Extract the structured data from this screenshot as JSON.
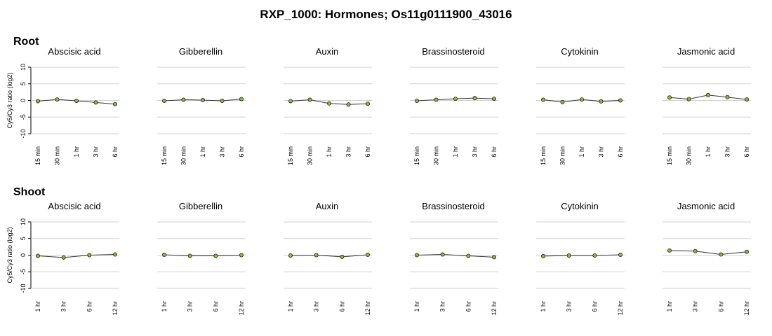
{
  "chart_data": {
    "title": "RXP_1000: Hormones; Os11g0111900_43016",
    "ylabel": "Cy5/Cy3 ratio (log2)",
    "ylim": [
      -10,
      10
    ],
    "yticks": [
      10,
      5,
      0,
      -5,
      -10
    ],
    "type": "line",
    "colors": {
      "line": "#333333",
      "point_fill": "#8ab83a",
      "point_edge": "#222222",
      "grid": "#d0d0d0"
    },
    "groups": [
      {
        "name": "Root",
        "x": [
          "15 min",
          "30 min",
          "1 hr",
          "3 hr",
          "6 hr"
        ],
        "panels": [
          {
            "title": "Abscisic acid",
            "values": [
              -0.2,
              0.3,
              -0.1,
              -0.6,
              -1.1
            ]
          },
          {
            "title": "Gibberellin",
            "values": [
              -0.1,
              0.2,
              0.1,
              -0.1,
              0.4
            ]
          },
          {
            "title": "Auxin",
            "values": [
              -0.2,
              0.2,
              -0.9,
              -1.2,
              -1.0
            ]
          },
          {
            "title": "Brassinosteroid",
            "values": [
              -0.1,
              0.2,
              0.5,
              0.7,
              0.5
            ]
          },
          {
            "title": "Cytokinin",
            "values": [
              0.2,
              -0.5,
              0.3,
              -0.3,
              0.0
            ]
          },
          {
            "title": "Jasmonic acid",
            "values": [
              0.9,
              0.4,
              1.6,
              1.0,
              0.3
            ]
          }
        ]
      },
      {
        "name": "Shoot",
        "x": [
          "1 hr",
          "3 hr",
          "6 hr",
          "12 hr"
        ],
        "panels": [
          {
            "title": "Abscisic acid",
            "values": [
              -0.2,
              -0.7,
              0.0,
              0.2
            ]
          },
          {
            "title": "Gibberellin",
            "values": [
              0.1,
              -0.2,
              -0.2,
              0.0
            ]
          },
          {
            "title": "Auxin",
            "values": [
              -0.1,
              0.0,
              -0.5,
              0.1
            ]
          },
          {
            "title": "Brassinosteroid",
            "values": [
              0.0,
              0.2,
              -0.2,
              -0.6
            ]
          },
          {
            "title": "Cytokinin",
            "values": [
              -0.3,
              -0.1,
              -0.1,
              0.1
            ]
          },
          {
            "title": "Jasmonic acid",
            "values": [
              1.4,
              1.2,
              0.2,
              1.0
            ]
          }
        ]
      }
    ]
  }
}
